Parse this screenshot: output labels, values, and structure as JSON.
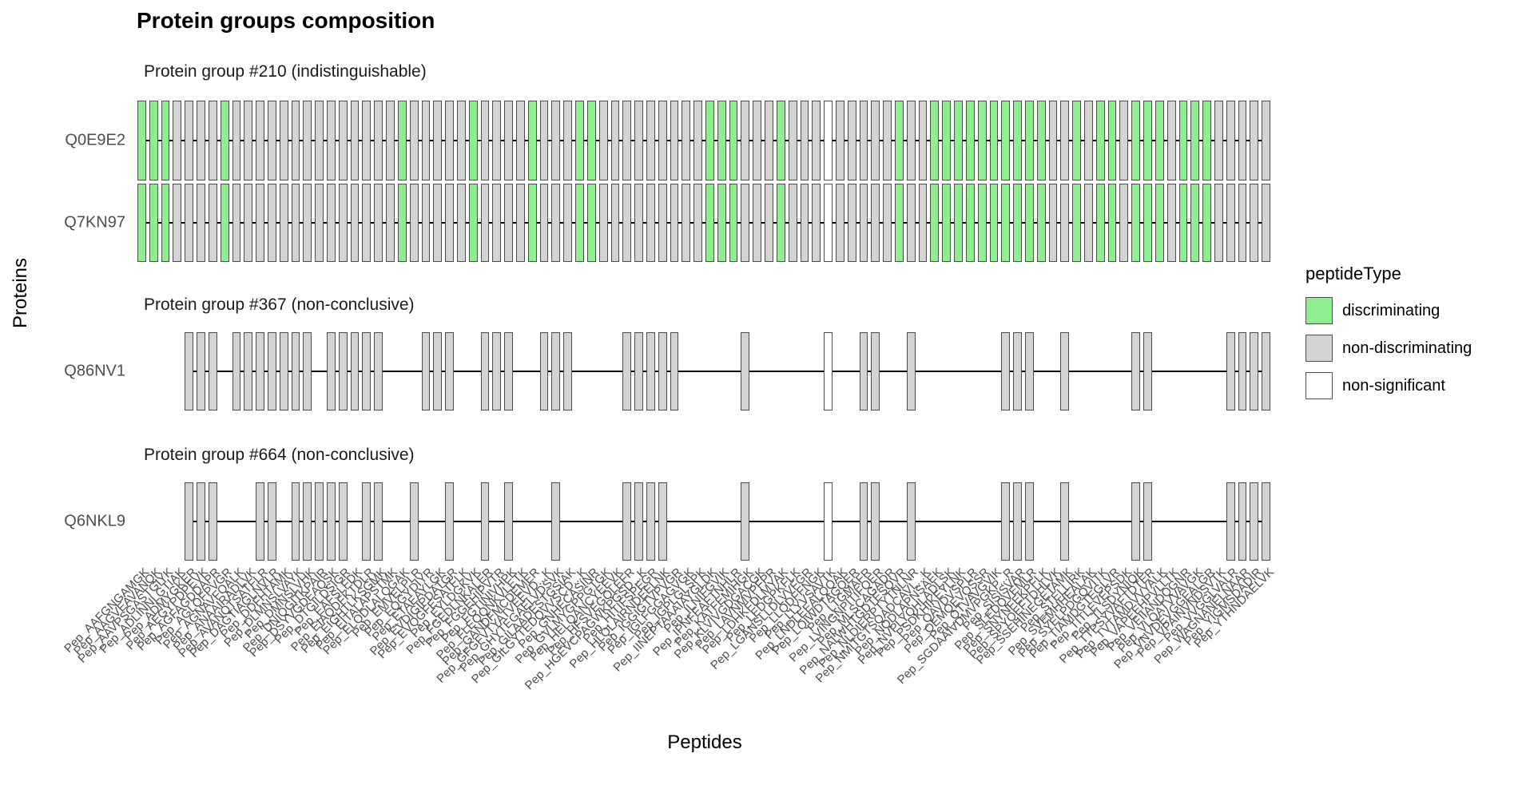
{
  "chart_data": {
    "type": "heatmap",
    "title": "Protein groups composition",
    "xlabel": "Peptides",
    "ylabel": "Proteins",
    "legend": {
      "title": "peptideType",
      "entries": [
        {
          "label": "discriminating",
          "color": "#90EE90"
        },
        {
          "label": "non-discriminating",
          "color": "#D3D3D3"
        },
        {
          "label": "non-significant",
          "color": "#FFFFFF"
        }
      ]
    },
    "tile_border_color": "#4d4d4d",
    "line_color": "#000000",
    "peptides": [
      "Pep_AAFGNGAMGK",
      "Pep_AAGVEAVANQK",
      "Pep_AAVPSGASTGIYK",
      "Pep_ADLINNLGTIAK",
      "Pep_ADMYGKER",
      "Pep_AEGYPDPEVK",
      "Pep_AGFAGDDAPR",
      "Pep_AGLQFPVGR",
      "Pep_AGNAVFQALK",
      "Pep_ANAAIRADLVK",
      "Pep_AVANQTSATFLR",
      "Pep_DAGTIAGLNVLR",
      "Pep_DDFHTAMK",
      "Pep_DLMNSLVAYK",
      "Pep_DMNSLVHK",
      "Pep_DNIQGITKPAIR",
      "Pep_DSYVGDEAQSK",
      "Pep_DTGILDSIGR",
      "Pep_EAFSLFDK",
      "Pep_EIAQDFKTDLR",
      "Pep_EIGHTLKSGMK",
      "Pep_EITALAPSTMK",
      "Pep_ELQDLALQGAK",
      "Pep_EMVELPLR",
      "Pep_EQGYDIYR",
      "Pep_ETAEAYLGK",
      "Pep_EVDIGIPDATGR",
      "Pep_EVQGFESATFLK",
      "Pep_EYLDGKVK",
      "Pep_FGEDLNKALER",
      "Pep_FGGEHIPVTR",
      "Pep_FGTINIVHPK",
      "Pep_FLEQQNKVLETK",
      "Pep_GANDFMCDEMER",
      "Pep_GFGFVTYATVEEVD...K",
      "Pep_GHYTEGAELVDSVK",
      "Pep_GILAADESTGSIAK",
      "Pep_GILGYTEDQVVSCD...K",
      "Pep_GNHECASINR",
      "Pep_GVLMYGPPGTGK",
      "Pep_HELQANCYEEVK",
      "Pep_HFSVEGQLEFR",
      "Pep_HGEVCPAGWKPGSD...K",
      "Pep_HITIFSPEGR",
      "Pep_HLQLAIRNDEELNK",
      "Pep_IGGIGTVPVGR",
      "Pep_IGLFGGAGVGK",
      "Pep_IGPLGLSPK",
      "Pep_IINEPTAAAIAYGLDK",
      "Pep_ILNIFGVIK",
      "Pep_IPNFEAFTNHLR",
      "Pep_KATFEMIHGK",
      "Pep_KLVIVGDGACGK",
      "Pep_LAVNMVPFPR",
      "Pep_LDHKFDLMYAK",
      "Pep_LEDGPKFLK",
      "Pep_LGANSLLDLVVFGR",
      "Pep_LLQDFFNGK",
      "Pep_LLYVSAVTK",
      "Pep_LNDLEEALQQAK",
      "Pep_LQIWDTAGQER",
      "Pep_LTGMAFR",
      "Pep_LVINGNPITIFQER",
      "Pep_MLSCAGADR",
      "Pep_NALWHTGDTESQVR",
      "Pep_NLDIERPTYTNLNR",
      "Pep_NMITGTSQADCAVL...K",
      "Pep_NQDLAPNSAEK",
      "Pep_NVPLYQHLADLSK",
      "Pep_PSDKHIKEYLNK",
      "Pep_QAVDVSPLR",
      "Pep_QEMQEVQSSR",
      "Pep_QTVAVGVIK",
      "Pep_SGDAAIVDMVPGKP...R",
      "Pep_SISISVAR",
      "Pep_SLEDQVEMLR",
      "Pep_SNYNFEKPFLK",
      "Pep_SPYQEFTDHLVK",
      "Pep_SSEHINEGETAMK",
      "Pep_STELLIRK",
      "Pep_SVEMHHEALAK",
      "Pep_SYELPDGQVITK",
      "Pep_TIAMDGTEGLVR",
      "Pep_TITLEVEPSDK",
      "Pep_TLSDYNIQK",
      "Pep_TTPSYVAFTDTER",
      "Pep_TVTAMDVVYALK",
      "Pep_VAPEEHPVLLTK",
      "Pep_VEIIANDQGNR",
      "Pep_VLQATVVAVGK",
      "Pep_VNVDEVGGEALGR",
      "Pep_VPAINVNDSVTK",
      "Pep_VVGGLVALR",
      "Pep_WAGNANELNAAR",
      "Pep_YIGMSDADIR",
      "Pep_YTHNDAELVK"
    ],
    "facets": [
      {
        "title": "Protein group #210 (indistinguishable)",
        "rows": [
          {
            "protein": "Q0E9E2",
            "peptide_indices": "all",
            "types": {
              "discriminating": [
                0,
                1,
                2,
                7,
                22,
                28,
                33,
                37,
                38,
                48,
                49,
                50,
                54,
                64,
                67,
                68,
                69,
                70,
                71,
                72,
                73,
                74,
                75,
                76,
                79,
                81,
                82,
                84,
                85,
                86,
                88,
                89,
                90
              ],
              "non_significant": [
                58
              ]
            }
          },
          {
            "protein": "Q7KN97",
            "peptide_indices": "all",
            "types": {
              "discriminating": [
                0,
                1,
                2,
                7,
                22,
                28,
                33,
                37,
                38,
                48,
                49,
                50,
                54,
                64,
                67,
                68,
                69,
                70,
                71,
                72,
                73,
                74,
                75,
                76,
                79,
                81,
                82,
                84,
                85,
                86,
                88,
                89,
                90
              ],
              "non_significant": [
                58
              ]
            }
          }
        ]
      },
      {
        "title": "Protein group #367 (non-conclusive)",
        "rows": [
          {
            "protein": "Q86NV1",
            "peptide_indices": [
              4,
              5,
              6,
              8,
              9,
              10,
              11,
              12,
              13,
              14,
              16,
              17,
              18,
              19,
              20,
              24,
              25,
              26,
              29,
              30,
              31,
              34,
              35,
              36,
              41,
              42,
              43,
              44,
              45,
              51,
              58,
              61,
              62,
              65,
              73,
              74,
              75,
              78,
              84,
              85,
              92,
              93,
              94,
              95
            ],
            "types": {
              "discriminating": [],
              "non_significant": [
                58
              ]
            }
          }
        ]
      },
      {
        "title": "Protein group #664 (non-conclusive)",
        "rows": [
          {
            "protein": "Q6NKL9",
            "peptide_indices": [
              4,
              5,
              6,
              10,
              11,
              13,
              14,
              15,
              16,
              17,
              19,
              20,
              23,
              26,
              29,
              31,
              35,
              41,
              42,
              43,
              44,
              51,
              58,
              61,
              62,
              65,
              73,
              74,
              75,
              78,
              84,
              85,
              92,
              93,
              94,
              95
            ],
            "types": {
              "discriminating": [],
              "non_significant": [
                58
              ]
            }
          }
        ]
      }
    ]
  }
}
